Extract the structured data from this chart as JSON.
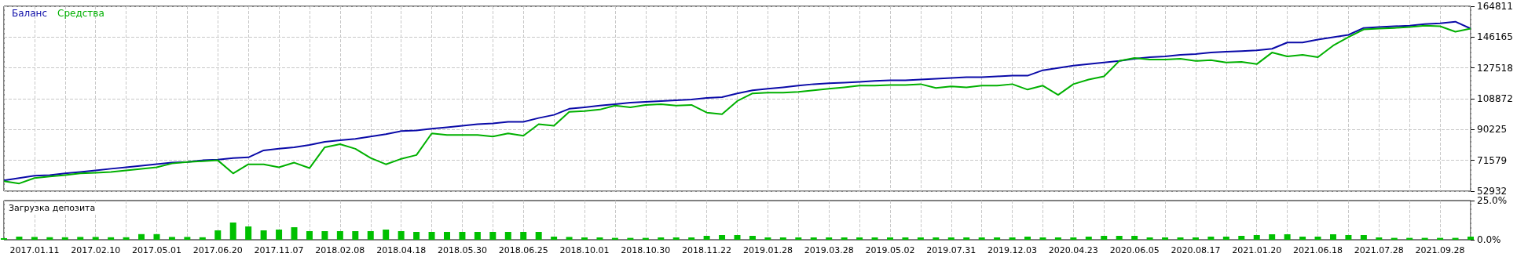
{
  "chart_data": [
    {
      "type": "line",
      "categories": [
        null,
        null,
        "2017.01.11",
        null,
        null,
        null,
        "2017.02.10",
        null,
        null,
        null,
        "2017.05.01",
        null,
        null,
        null,
        "2017.06.20",
        null,
        null,
        null,
        "2017.11.07",
        null,
        null,
        null,
        "2018.02.08",
        null,
        null,
        null,
        "2018.04.18",
        null,
        null,
        null,
        "2018.05.30",
        null,
        null,
        null,
        "2018.06.25",
        null,
        null,
        null,
        "2018.10.01",
        null,
        null,
        null,
        "2018.10.30",
        null,
        null,
        null,
        "2018.11.22",
        null,
        null,
        null,
        "2019.01.28",
        null,
        null,
        null,
        "2019.03.28",
        null,
        null,
        null,
        "2019.05.02",
        null,
        null,
        null,
        "2019.07.31",
        null,
        null,
        null,
        "2019.12.03",
        null,
        null,
        null,
        "2020.04.23",
        null,
        null,
        null,
        "2020.06.05",
        null,
        null,
        null,
        "2020.08.17",
        null,
        null,
        null,
        "2021.01.20",
        null,
        null,
        null,
        "2021.06.18",
        null,
        null,
        null,
        "2021.07.28",
        null,
        null,
        null,
        "2021.09.28",
        null,
        null
      ],
      "series": [
        {
          "name": "Баланс",
          "color": "#0a0aa8",
          "values": [
            59500,
            60900,
            62300,
            62700,
            63700,
            64600,
            65500,
            66500,
            67400,
            68300,
            69300,
            70200,
            70600,
            71600,
            72000,
            73000,
            73400,
            77600,
            78600,
            79500,
            80900,
            82800,
            83700,
            84600,
            86000,
            87400,
            89300,
            89700,
            90700,
            91600,
            92500,
            93500,
            93900,
            94900,
            94900,
            97200,
            99100,
            102800,
            103700,
            104700,
            105600,
            106500,
            107000,
            107500,
            107900,
            108400,
            109300,
            109800,
            112100,
            114000,
            114900,
            115800,
            116800,
            117700,
            118200,
            118600,
            119100,
            119600,
            120000,
            120000,
            120500,
            121000,
            121400,
            121900,
            121900,
            122400,
            122800,
            122800,
            126100,
            127500,
            128900,
            129800,
            130800,
            131700,
            133100,
            134000,
            134500,
            135400,
            135900,
            136800,
            137300,
            137700,
            138200,
            139100,
            142900,
            142900,
            144700,
            146100,
            147500,
            151700,
            152200,
            152700,
            153100,
            154000,
            154500,
            155500,
            151300
          ]
        },
        {
          "name": "Средства",
          "color": "#00b000",
          "values": [
            59000,
            57600,
            60900,
            61800,
            62700,
            63700,
            64100,
            64600,
            65500,
            66400,
            67400,
            69700,
            70600,
            71100,
            71600,
            63700,
            69200,
            69200,
            67400,
            70200,
            66900,
            79500,
            81400,
            78600,
            73000,
            69200,
            72500,
            74800,
            87900,
            87000,
            87000,
            87000,
            86000,
            87900,
            86500,
            93500,
            92500,
            100900,
            101400,
            102300,
            104700,
            103700,
            105100,
            105600,
            104700,
            105100,
            100500,
            99500,
            107500,
            112100,
            112600,
            112600,
            113000,
            114000,
            114900,
            115800,
            116800,
            116800,
            117200,
            117200,
            117700,
            115400,
            116300,
            115800,
            116800,
            116800,
            117700,
            114400,
            116800,
            111200,
            117700,
            120500,
            122400,
            131700,
            133500,
            132600,
            132600,
            133100,
            131700,
            132200,
            130800,
            131200,
            129800,
            136800,
            134500,
            135400,
            134000,
            141000,
            146100,
            150800,
            151300,
            151700,
            152200,
            153100,
            152700,
            149400,
            151300
          ]
        }
      ],
      "ylim": [
        52932,
        164811
      ],
      "yticks": [
        52932,
        71579,
        90225,
        108872,
        127518,
        146165,
        164811
      ],
      "grid": true,
      "legend": "top left",
      "marker": "none",
      "tick_labels": "y"
    },
    {
      "type": "bar",
      "title": "Загрузка депозита",
      "categories": [
        null,
        null,
        "2017.01.11",
        null,
        null,
        null,
        "2017.02.10",
        null,
        null,
        null,
        "2017.05.01",
        null,
        null,
        null,
        "2017.06.20",
        null,
        null,
        null,
        "2017.11.07",
        null,
        null,
        null,
        "2018.02.08",
        null,
        null,
        null,
        "2018.04.18",
        null,
        null,
        null,
        "2018.05.30",
        null,
        null,
        null,
        "2018.06.25",
        null,
        null,
        null,
        "2018.10.01",
        null,
        null,
        null,
        "2018.10.30",
        null,
        null,
        null,
        "2018.11.22",
        null,
        null,
        null,
        "2019.01.28",
        null,
        null,
        null,
        "2019.03.28",
        null,
        null,
        null,
        "2019.05.02",
        null,
        null,
        null,
        "2019.07.31",
        null,
        null,
        null,
        "2019.12.03",
        null,
        null,
        null,
        "2020.04.23",
        null,
        null,
        null,
        "2020.06.05",
        null,
        null,
        null,
        "2020.08.17",
        null,
        null,
        null,
        "2021.01.20",
        null,
        null,
        null,
        "2021.06.18",
        null,
        null,
        null,
        "2021.07.28",
        null,
        null,
        null,
        "2021.09.28",
        null,
        null
      ],
      "color": "#00c000",
      "values": [
        1,
        2,
        1.8,
        1.6,
        1.6,
        1.8,
        1.8,
        1.6,
        1.6,
        3.6,
        3.6,
        1.8,
        1.8,
        1.6,
        6,
        11,
        8.5,
        6,
        6.5,
        8,
        5.5,
        5.5,
        5.5,
        5.5,
        5.5,
        6.5,
        5.5,
        5,
        5,
        5,
        5,
        5,
        5,
        5,
        5,
        5,
        2,
        1.8,
        1.5,
        1.5,
        1.2,
        1.2,
        1.2,
        1.5,
        1.5,
        1.5,
        2.5,
        3,
        3,
        2.5,
        1.5,
        1.5,
        1.5,
        1.5,
        1.5,
        1.5,
        1.5,
        1.5,
        1.5,
        1.5,
        1.5,
        1.5,
        1.5,
        1.5,
        1.5,
        1.5,
        1.5,
        2,
        1.5,
        1.5,
        1.5,
        2,
        2.5,
        2.5,
        2.5,
        1.5,
        1.5,
        1.5,
        1.5,
        2,
        2,
        2.5,
        3,
        3.5,
        3.5,
        2,
        2,
        3.5,
        3,
        3,
        1.5,
        1.2,
        1.2,
        1.2,
        1.2,
        1.2,
        2
      ],
      "ylim": [
        0,
        25
      ],
      "yticks": [
        {
          "value": 0,
          "label": "0.0%"
        },
        {
          "value": 25,
          "label": "25.0%"
        }
      ],
      "grid": "x"
    }
  ]
}
